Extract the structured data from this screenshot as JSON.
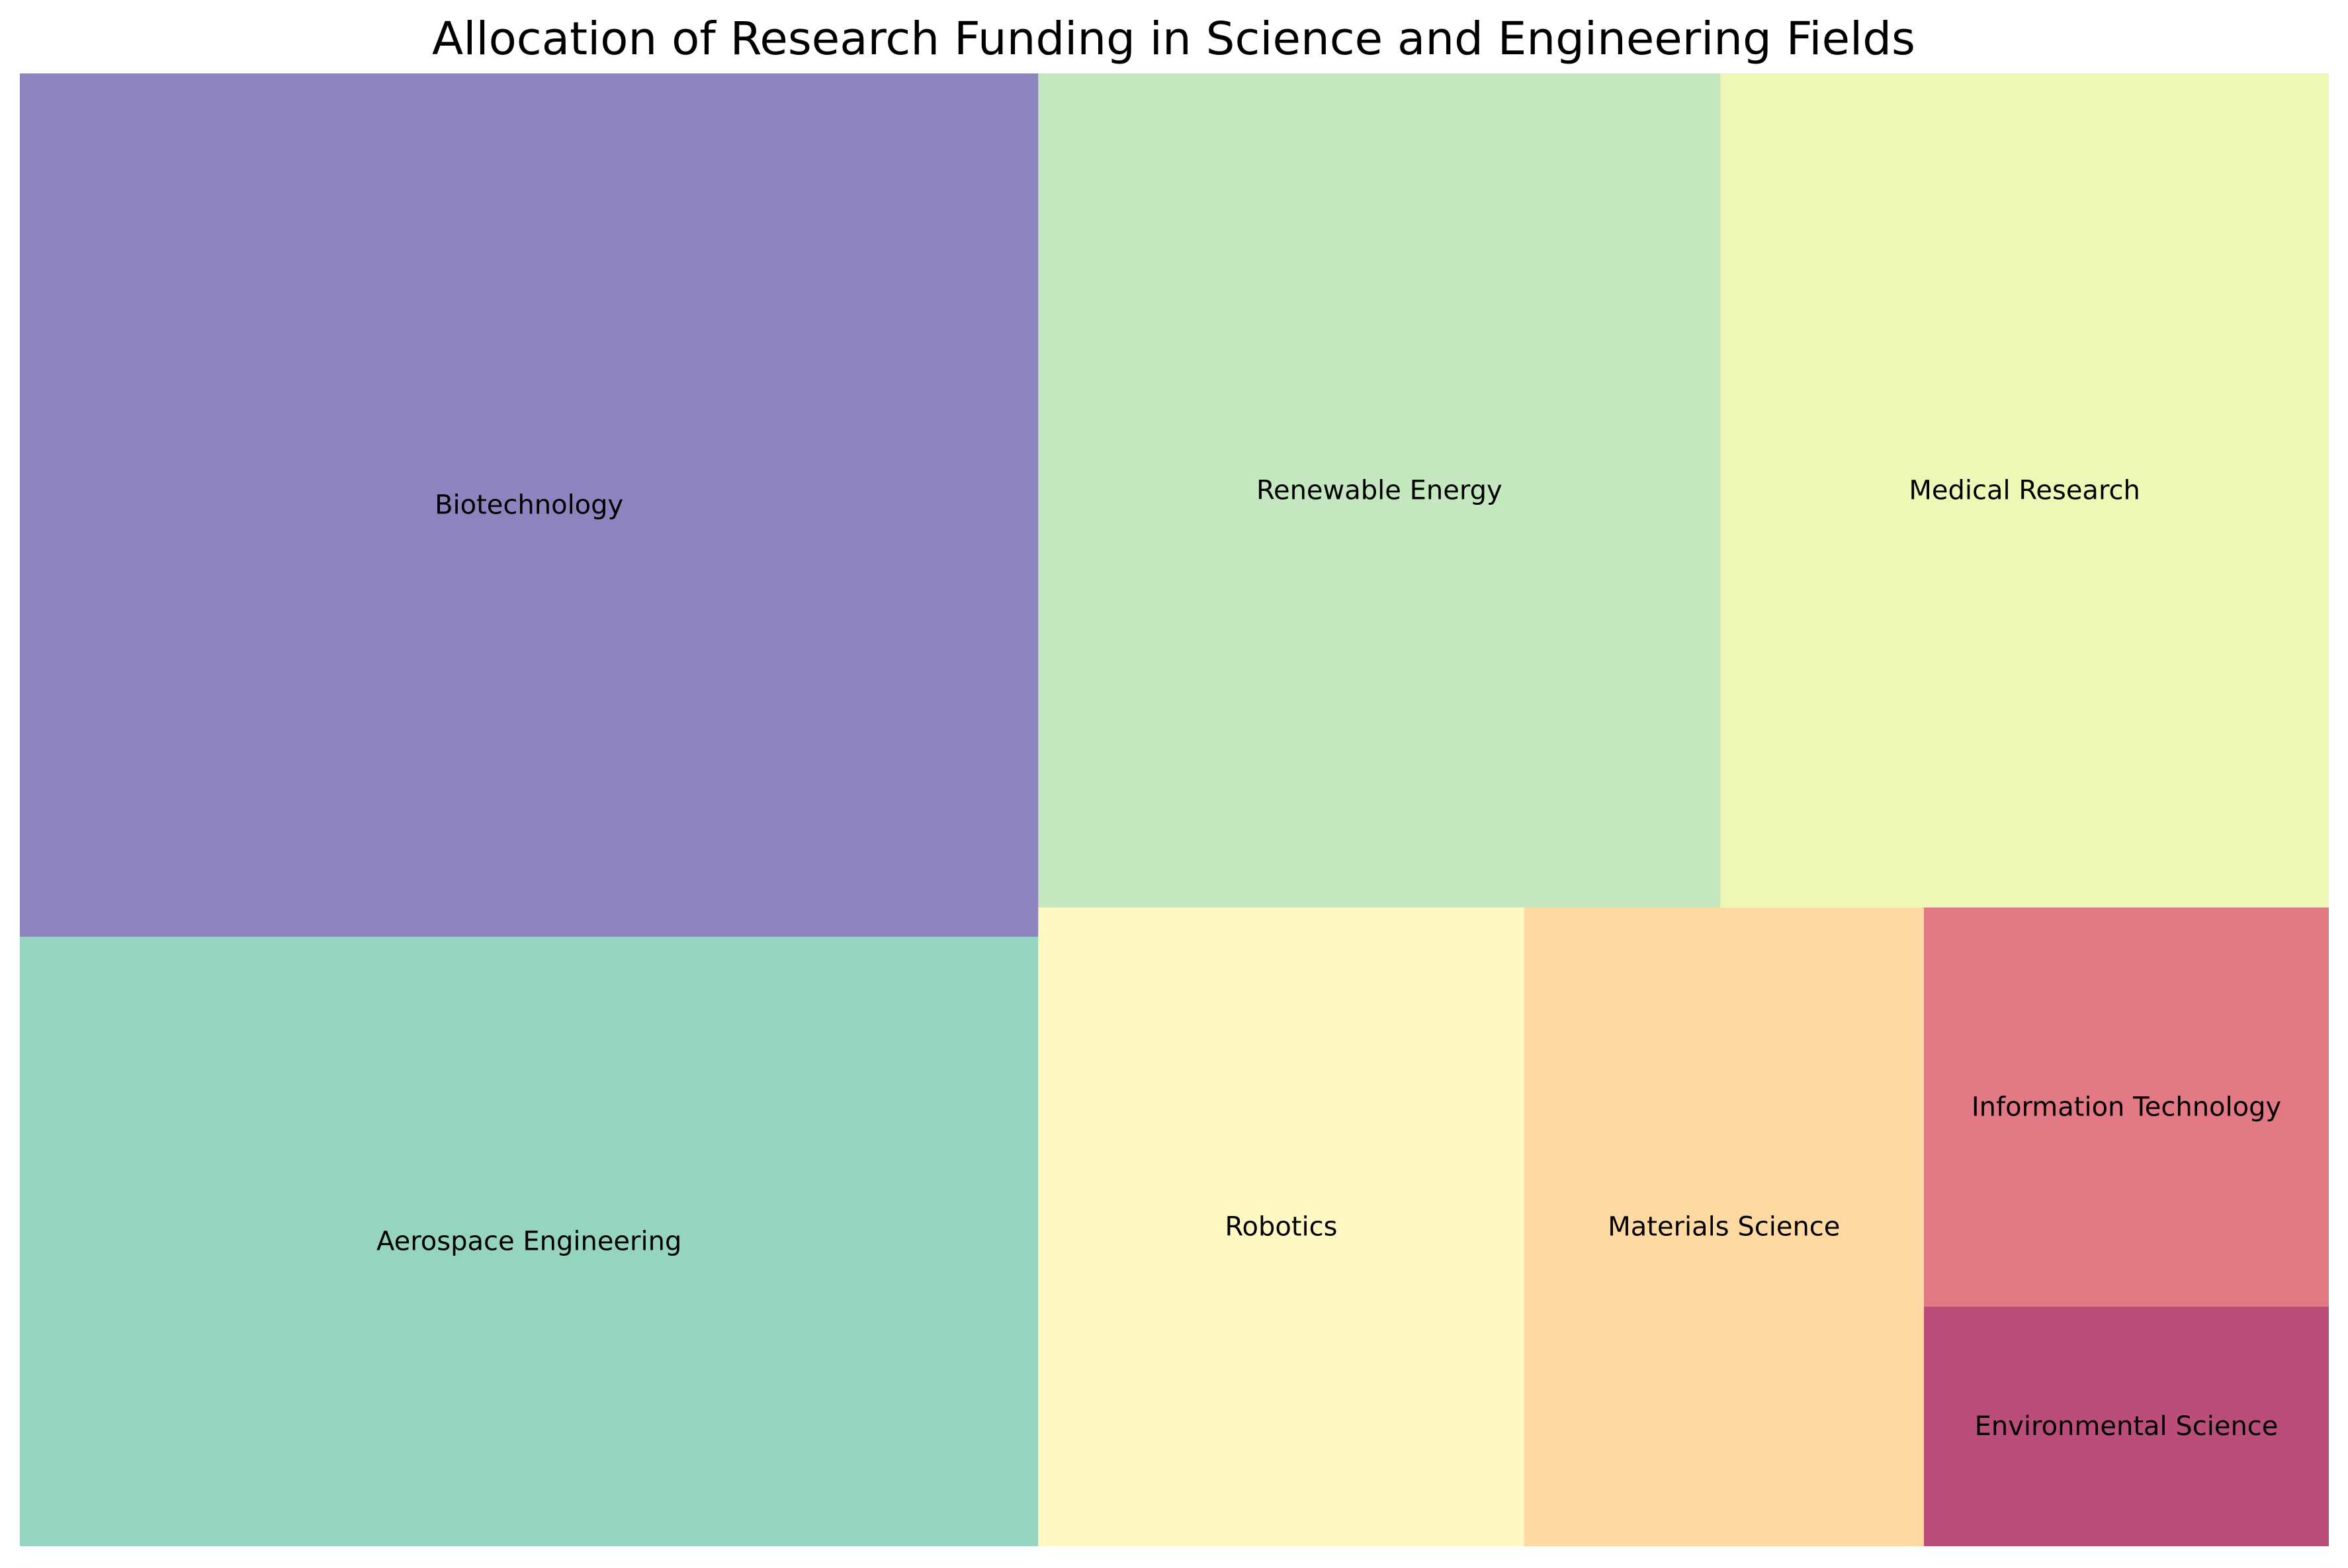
{
  "chart_data": {
    "type": "treemap",
    "title": "Allocation of Research Funding in Science and Engineering Fields",
    "items": [
      {
        "label": "Biotechnology",
        "value": 27.2,
        "color": "#5e4fa2"
      },
      {
        "label": "Aerospace Engineering",
        "value": 19.2,
        "color": "#66c2a5"
      },
      {
        "label": "Renewable Energy",
        "value": 17.6,
        "color": "#abdda4"
      },
      {
        "label": "Medical Research",
        "value": 15.7,
        "color": "#e6f598"
      },
      {
        "label": "Robotics",
        "value": 9.6,
        "color": "#fff5a8"
      },
      {
        "label": "Materials Science",
        "value": 7.9,
        "color": "#fdca7a"
      },
      {
        "label": "Information Technology",
        "value": 5.0,
        "color": "#d53e4f"
      },
      {
        "label": "Environmental Science",
        "value": 3.0,
        "color": "#9e0142"
      }
    ],
    "tile_opacity": 0.7
  }
}
